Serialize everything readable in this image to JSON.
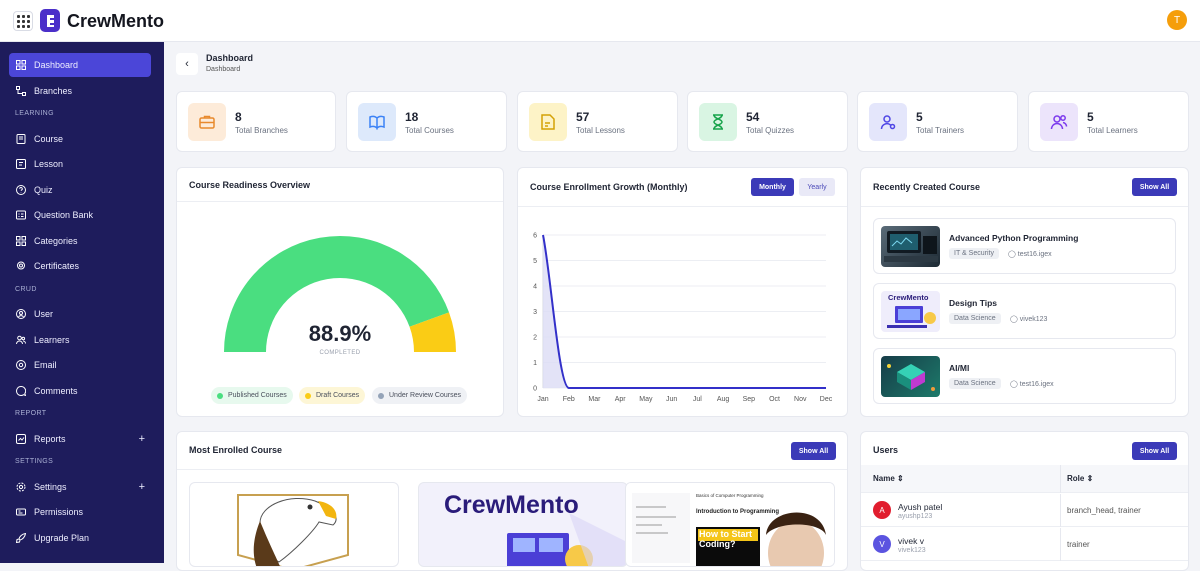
{
  "app": {
    "name": "CrewMento",
    "user_initial": "T"
  },
  "sidebar": {
    "items": [
      {
        "label": "Dashboard",
        "icon": "dashboard-icon",
        "active": true
      },
      {
        "label": "Branches",
        "icon": "branch-icon"
      }
    ],
    "learning_head": "LEARNING",
    "learning": [
      {
        "label": "Course",
        "icon": "book-icon"
      },
      {
        "label": "Lesson",
        "icon": "lesson-icon"
      },
      {
        "label": "Quiz",
        "icon": "question-icon"
      },
      {
        "label": "Question Bank",
        "icon": "bank-icon"
      },
      {
        "label": "Categories",
        "icon": "categories-icon"
      },
      {
        "label": "Certificates",
        "icon": "certificate-icon"
      }
    ],
    "crud_head": "CRUD",
    "crud": [
      {
        "label": "User",
        "icon": "user-icon"
      },
      {
        "label": "Learners",
        "icon": "learners-icon"
      },
      {
        "label": "Email",
        "icon": "email-icon"
      },
      {
        "label": "Comments",
        "icon": "comments-icon"
      }
    ],
    "report_head": "REPORT",
    "report": [
      {
        "label": "Reports",
        "icon": "reports-icon",
        "plus": "+"
      }
    ],
    "settings_head": "SETTINGS",
    "settings": [
      {
        "label": "Settings",
        "icon": "settings-icon",
        "plus": "+"
      },
      {
        "label": "Permissions",
        "icon": "permissions-icon"
      },
      {
        "label": "Upgrade Plan",
        "icon": "rocket-icon"
      }
    ]
  },
  "breadcrumb": {
    "title": "Dashboard",
    "sub": "Dashboard"
  },
  "stats": [
    {
      "value": "8",
      "label": "Total Branches",
      "icon": "briefcase-icon",
      "bg": "#fdebd9",
      "fg": "#e8892c"
    },
    {
      "value": "18",
      "label": "Total Courses",
      "icon": "book-open-icon",
      "bg": "#dde9fb",
      "fg": "#3b82f6"
    },
    {
      "value": "57",
      "label": "Total Lessons",
      "icon": "document-icon",
      "bg": "#fdf3c7",
      "fg": "#d4a106"
    },
    {
      "value": "54",
      "label": "Total Quizzes",
      "icon": "hourglass-icon",
      "bg": "#d9f5e3",
      "fg": "#16a34a"
    },
    {
      "value": "5",
      "label": "Total Trainers",
      "icon": "trainer-icon",
      "bg": "#e4e6fb",
      "fg": "#4f46e5"
    },
    {
      "value": "5",
      "label": "Total Learners",
      "icon": "learners-icon",
      "bg": "#ece4fb",
      "fg": "#7c3aed"
    }
  ],
  "readiness": {
    "title": "Course Readiness Overview",
    "percent": 88.9,
    "value_text": "88.9%",
    "sub": "COMPLETED",
    "legend": [
      {
        "label": "Published Courses",
        "color": "#4ade80",
        "bg": "#e7f9ee"
      },
      {
        "label": "Draft Courses",
        "color": "#facc15",
        "bg": "#fdf6d6"
      },
      {
        "label": "Under Review Courses",
        "color": "#94a3b8",
        "bg": "#eff1f5"
      }
    ]
  },
  "enrollment": {
    "title": "Course Enrollment Growth (Monthly)",
    "tabs": [
      "Monthly",
      "Yearly"
    ],
    "active_tab": "Monthly"
  },
  "chart_data": {
    "type": "area",
    "title": "Course Enrollment Growth (Monthly)",
    "x": [
      "Jan",
      "Feb",
      "Mar",
      "Apr",
      "May",
      "Jun",
      "Jul",
      "Aug",
      "Sep",
      "Oct",
      "Nov",
      "Dec"
    ],
    "y_ticks": [
      "0",
      "1",
      "2",
      "3",
      "4",
      "5",
      "6"
    ],
    "ylim": [
      0,
      6
    ],
    "series": [
      {
        "values": [
          6,
          0,
          0,
          0,
          0,
          0,
          0,
          0,
          0,
          0,
          0,
          0
        ],
        "color": "#3330c9"
      }
    ],
    "grid": true
  },
  "recent": {
    "title": "Recently Created Course",
    "show_all": "Show All",
    "courses": [
      {
        "title": "Advanced Python Programming",
        "category": "IT & Security",
        "author": "test16.igex"
      },
      {
        "title": "Design Tips",
        "category": "Data Science",
        "author": "vivek123",
        "thumb_text": "CrewMento"
      },
      {
        "title": "AI/Ml",
        "category": "Data Science",
        "author": "test16.igex"
      }
    ]
  },
  "most_enrolled": {
    "title": "Most Enrolled Course",
    "show_all": "Show All",
    "thumb2_text": "CrewMento",
    "thumb3_title": "Basics of Computer Programming",
    "thumb3_heading": "Introduction to Programming",
    "thumb3_banner": "How to Start Coding?"
  },
  "users": {
    "title": "Users",
    "show_all": "Show All",
    "columns": [
      "Name",
      "Role"
    ],
    "rows": [
      {
        "initial": "A",
        "name": "Ayush patel",
        "handle": "ayushp123",
        "role": "branch_head, trainer",
        "color": "#e11d2e"
      },
      {
        "initial": "V",
        "name": "vivek v",
        "handle": "vivek123",
        "role": "trainer",
        "color": "#5b54e0"
      }
    ]
  }
}
